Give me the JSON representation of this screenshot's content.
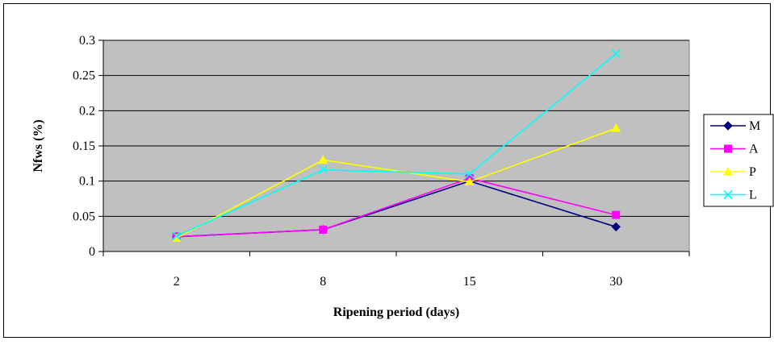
{
  "chart_data": {
    "type": "line",
    "title": "",
    "xlabel": "Ripening period (days)",
    "ylabel": "Nfws (%)",
    "categories": [
      "2",
      "8",
      "15",
      "30"
    ],
    "ylim": [
      0,
      0.3
    ],
    "yticks": [
      0,
      0.05,
      0.1,
      0.15,
      0.2,
      0.25,
      0.3
    ],
    "ytick_labels": [
      "0",
      "0.05",
      "0.1",
      "0.15",
      "0.2",
      "0.25",
      "0.3"
    ],
    "grid": "horizontal",
    "plot_background": "#c0c0c0",
    "legend_position": "right",
    "series": [
      {
        "name": "M",
        "values": [
          0.021,
          0.031,
          0.1,
          0.035
        ],
        "color": "#000080",
        "marker": "diamond"
      },
      {
        "name": "A",
        "values": [
          0.021,
          0.031,
          0.104,
          0.052
        ],
        "color": "#ff00ff",
        "marker": "square"
      },
      {
        "name": "P",
        "values": [
          0.019,
          0.13,
          0.099,
          0.175
        ],
        "color": "#ffff00",
        "marker": "triangle"
      },
      {
        "name": "L",
        "values": [
          0.022,
          0.116,
          0.11,
          0.281
        ],
        "color": "#00ffff",
        "marker": "x"
      }
    ]
  }
}
